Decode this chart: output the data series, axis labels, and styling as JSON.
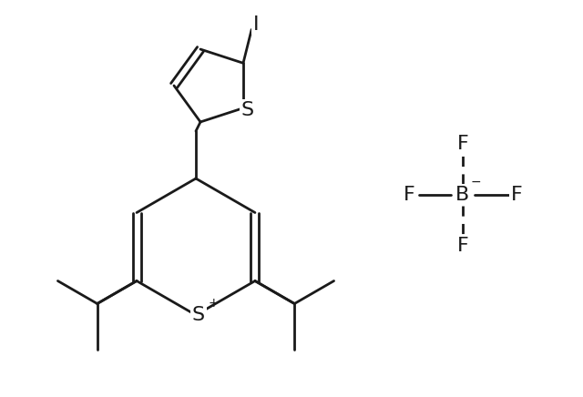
{
  "bg_color": "#ffffff",
  "line_color": "#1a1a1a",
  "line_width": 2.0,
  "font_size_atom": 15,
  "figsize": [
    6.4,
    4.36
  ],
  "dpi": 100,
  "xlim": [
    0,
    6.4
  ],
  "ylim": [
    0,
    4.36
  ]
}
